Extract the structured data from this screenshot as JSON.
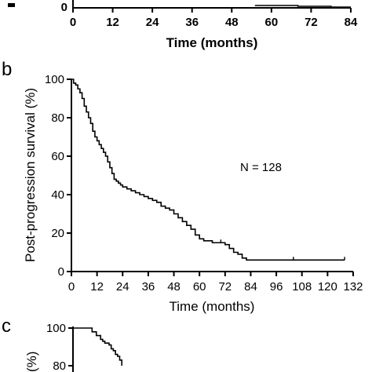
{
  "panels": {
    "top": {
      "xlabel": "Time (months)",
      "xticks": [
        "0",
        "12",
        "24",
        "36",
        "48",
        "60",
        "72",
        "84"
      ],
      "yticks": [
        "0"
      ]
    },
    "b": {
      "letter": "b",
      "ylabel": "Post-progression survival (%)",
      "xlabel": "Time (months)",
      "annotation": "N = 128",
      "xticks": [
        "0",
        "12",
        "24",
        "36",
        "48",
        "60",
        "72",
        "84",
        "96",
        "108",
        "120",
        "132"
      ],
      "yticks": [
        "0",
        "20",
        "40",
        "60",
        "80",
        "100"
      ]
    },
    "c": {
      "letter": "c",
      "ylabel_fragment": "(%)",
      "yticks": [
        "100",
        "80"
      ]
    }
  },
  "chart_data": [
    {
      "type": "line",
      "panel": "top",
      "xlabel": "Time (months)",
      "xlim": [
        0,
        84
      ],
      "series": [
        {
          "x": [
            55,
            62,
            68,
            74,
            78,
            84
          ],
          "y": [
            3,
            3,
            2,
            2,
            1,
            1
          ]
        }
      ]
    },
    {
      "type": "line",
      "panel": "b",
      "xlabel": "Time (months)",
      "ylabel": "Post-progression survival (%)",
      "xlim": [
        0,
        132
      ],
      "ylim": [
        0,
        100
      ],
      "annotation": "N = 128",
      "series": [
        {
          "x": [
            0,
            1,
            2,
            3,
            4,
            5,
            6,
            7,
            8,
            9,
            10,
            11,
            12,
            13,
            14,
            15,
            16,
            17,
            18,
            19,
            20,
            21,
            22,
            23,
            24,
            26,
            28,
            30,
            32,
            34,
            36,
            38,
            40,
            42,
            44,
            46,
            48,
            50,
            52,
            54,
            56,
            58,
            60,
            62,
            64,
            66,
            68,
            70,
            72,
            74,
            76,
            78,
            80,
            82,
            90,
            100,
            110,
            120,
            128
          ],
          "y": [
            100,
            98,
            97,
            95,
            93,
            90,
            86,
            83,
            80,
            77,
            73,
            70,
            68,
            66,
            64,
            62,
            60,
            57,
            54,
            51,
            48,
            47,
            46,
            45,
            44,
            43,
            42,
            41,
            40,
            39,
            38,
            37,
            36,
            34,
            33,
            32,
            30,
            28,
            26,
            24,
            22,
            19,
            17,
            16,
            16,
            15,
            15,
            15,
            14,
            12,
            10,
            9,
            7,
            6,
            6,
            6,
            6,
            6,
            6
          ]
        }
      ]
    },
    {
      "type": "line",
      "panel": "c",
      "ylim": [
        80,
        100
      ],
      "series": [
        {
          "x": [
            0,
            6,
            9,
            11,
            13,
            14,
            15,
            17,
            18,
            19,
            20,
            21,
            22,
            23
          ],
          "y": [
            100,
            100,
            98,
            96,
            94,
            93,
            92,
            91,
            89,
            88,
            86,
            85,
            83,
            80
          ]
        }
      ]
    }
  ]
}
